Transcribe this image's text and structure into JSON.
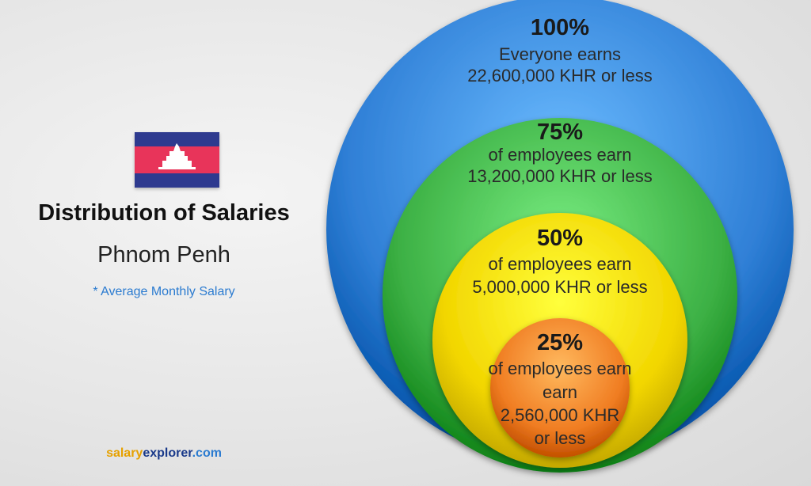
{
  "title": "Distribution of Salaries",
  "city": "Phnom Penh",
  "note": "* Average Monthly Salary",
  "brand": {
    "part1": "salary",
    "part2": "explorer",
    "part3": ".com"
  },
  "flag_icon": "cambodia-flag-icon",
  "chart_data": {
    "type": "nested-circles",
    "currency": "KHR",
    "levels": [
      {
        "percentile": 100,
        "pct_label": "100%",
        "lines": [
          "Everyone earns",
          "22,600,000 KHR or less"
        ],
        "value": 22600000,
        "color": "#2f7fd6"
      },
      {
        "percentile": 75,
        "pct_label": "75%",
        "lines": [
          "of employees earn",
          "13,200,000 KHR or less"
        ],
        "value": 13200000,
        "color": "#3cb044"
      },
      {
        "percentile": 50,
        "pct_label": "50%",
        "lines": [
          "of employees earn",
          "5,000,000 KHR or less"
        ],
        "value": 5000000,
        "color": "#f2d600"
      },
      {
        "percentile": 25,
        "pct_label": "25%",
        "lines": [
          "of employees earn",
          "earn",
          "2,560,000 KHR",
          "or less"
        ],
        "value": 2560000,
        "color": "#f07d22"
      }
    ]
  }
}
